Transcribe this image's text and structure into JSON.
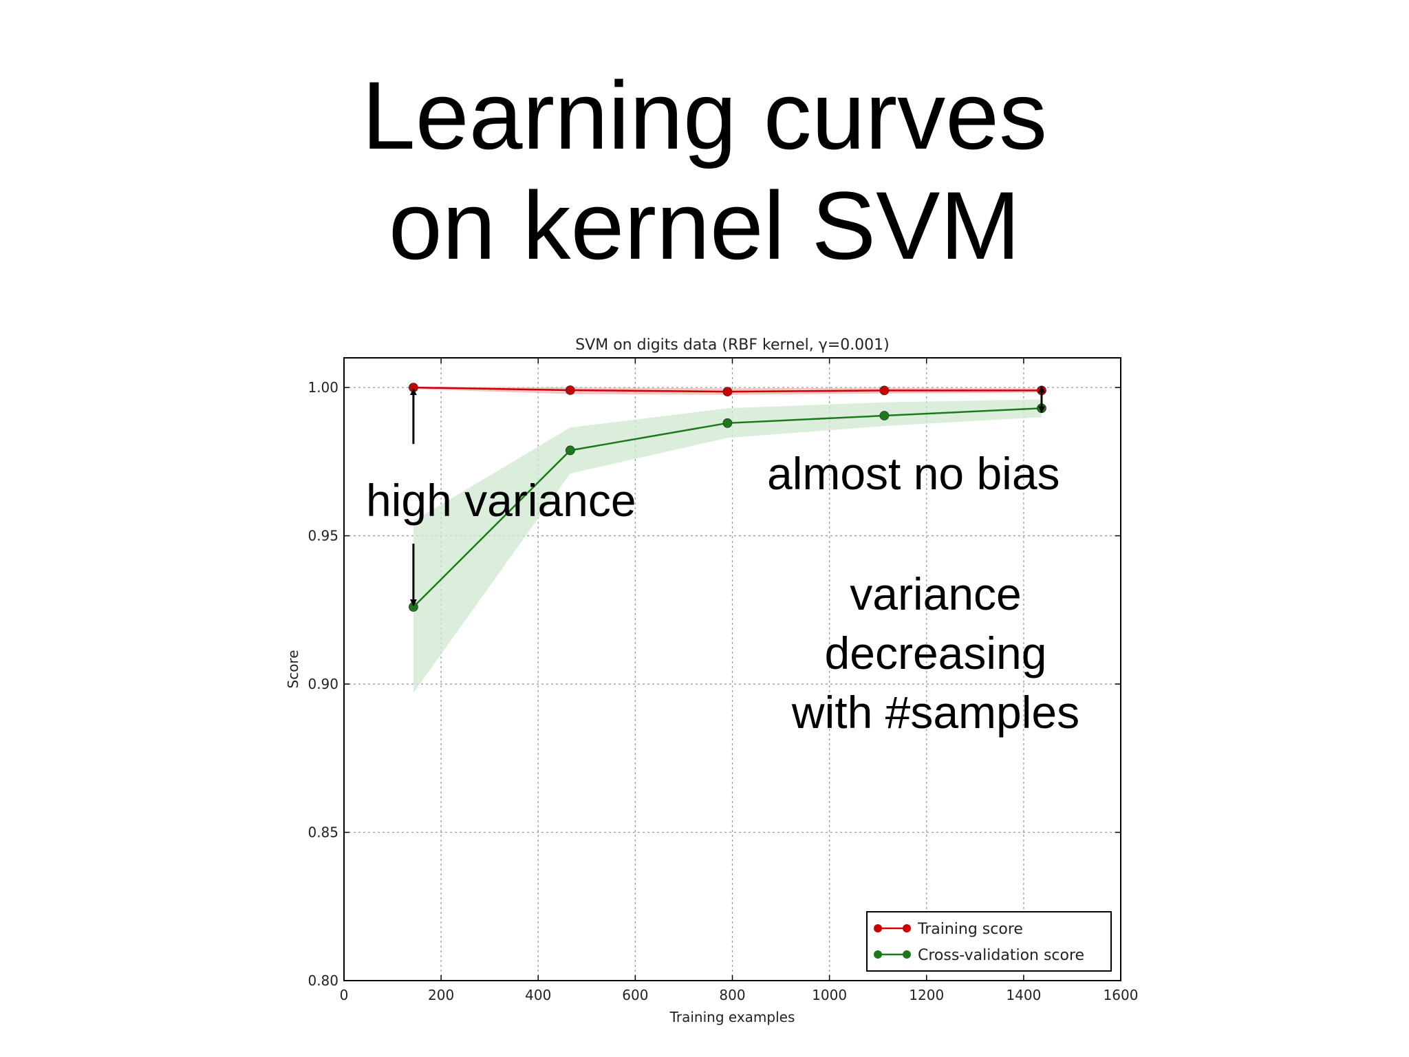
{
  "slide": {
    "title_lines": [
      "Learning curves",
      "on kernel SVM"
    ],
    "annotations": {
      "high_variance": "high variance",
      "almost_no_bias": "almost no bias",
      "variance_lines": [
        "variance",
        "decreasing",
        "with #samples"
      ]
    }
  },
  "colors": {
    "training": "#cc0000",
    "training_band": "#f2b0b0",
    "cv": "#1a7a1a",
    "cv_band": "#cfe8cf",
    "annotation_arrow": "#000000"
  },
  "chart_data": {
    "type": "line",
    "title": "SVM on digits data (RBF kernel, γ=0.001)",
    "xlabel": "Training examples",
    "ylabel": "Score",
    "xlim": [
      0,
      1600
    ],
    "ylim": [
      0.8,
      1.01
    ],
    "xticks": [
      0,
      200,
      400,
      600,
      800,
      1000,
      1200,
      1400,
      1600
    ],
    "xtick_labels": [
      "0",
      "200",
      "400",
      "600",
      "800",
      "1000",
      "1200",
      "1400",
      "1600"
    ],
    "yticks": [
      0.8,
      0.85,
      0.9,
      0.95,
      1.0
    ],
    "ytick_labels": [
      "0.80",
      "0.85",
      "0.90",
      "0.95",
      "1.00"
    ],
    "grid": true,
    "legend": "bottom-right",
    "x": [
      143,
      466,
      790,
      1113,
      1437
    ],
    "series": [
      {
        "name": "Training score",
        "values": [
          1.0,
          0.9991,
          0.9986,
          0.999,
          0.999
        ],
        "band_lower": [
          0.9995,
          0.9978,
          0.9975,
          0.998,
          0.9983
        ],
        "band_upper": [
          1.0003,
          1.0,
          0.9997,
          0.9999,
          0.9997
        ]
      },
      {
        "name": "Cross-validation score",
        "values": [
          0.926,
          0.9788,
          0.988,
          0.9905,
          0.993
        ],
        "band_lower": [
          0.897,
          0.971,
          0.983,
          0.987,
          0.99
        ],
        "band_upper": [
          0.955,
          0.9865,
          0.993,
          0.995,
          0.996
        ]
      }
    ]
  }
}
